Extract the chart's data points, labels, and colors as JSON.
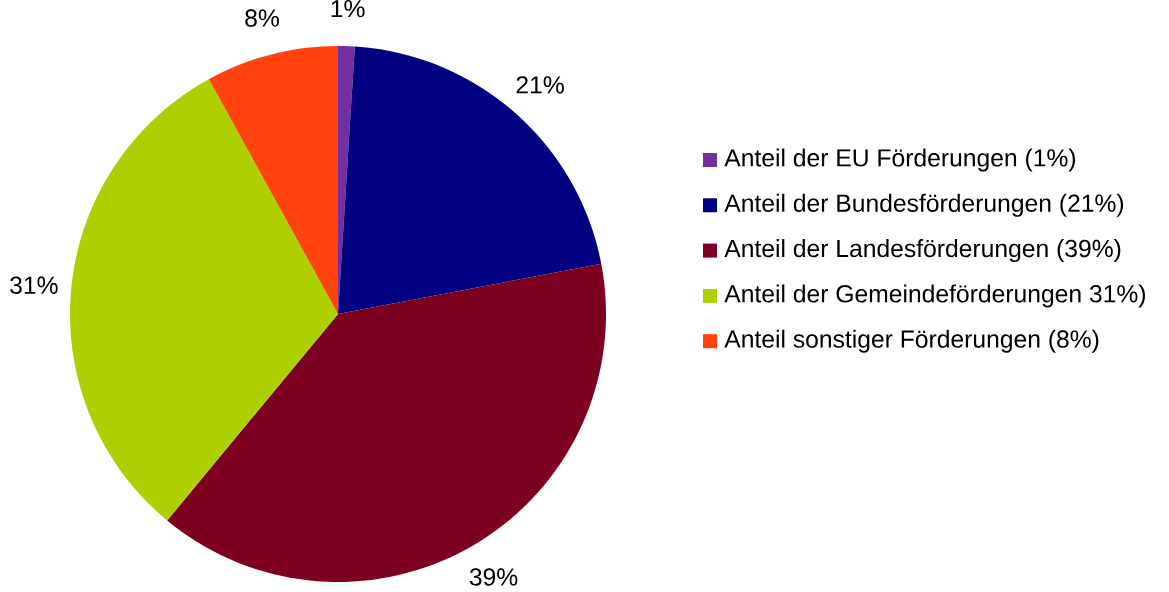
{
  "chart_data": {
    "type": "pie",
    "categories": [
      "Anteil der EU Förderungen (1%)",
      "Anteil der Bundesförderungen (21%)",
      "Anteil der Landesförderungen (39%)",
      "Anteil der Gemeindeförderungen 31%)",
      "Anteil sonstiger Förderungen (8%)"
    ],
    "values": [
      1,
      21,
      39,
      31,
      8
    ],
    "value_labels": [
      "1%",
      "21%",
      "39%",
      "31%",
      "8%"
    ],
    "colors": [
      "#7030a0",
      "#000080",
      "#7e0021",
      "#aecf00",
      "#ff420e"
    ],
    "legend": "right"
  }
}
